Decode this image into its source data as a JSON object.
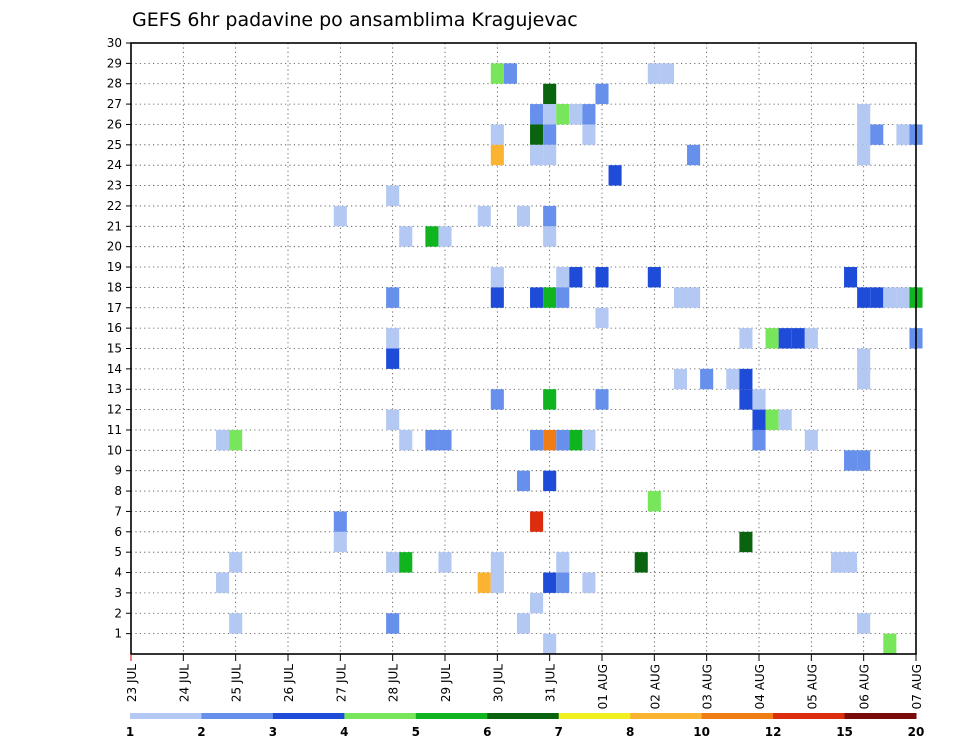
{
  "chart_data": {
    "type": "heatmap",
    "title": "GEFS 6hr padavine po ansamblima Kragujevac",
    "xlabel": "",
    "ylabel": "",
    "x_start": "2017-07-23 00Z",
    "x_end": "2017-08-07 00Z",
    "x_step_hours": 6,
    "x_tick_labels": [
      "23 JUL",
      "24 JUL",
      "25 JUL",
      "26 JUL",
      "27 JUL",
      "28 JUL",
      "29 JUL",
      "30 JUL",
      "31 JUL",
      "01 AUG",
      "02 AUG",
      "03 AUG",
      "04 AUG",
      "05 AUG",
      "06 AUG",
      "07 AUG"
    ],
    "y_tick_labels": [
      "1",
      "2",
      "3",
      "4",
      "5",
      "6",
      "7",
      "8",
      "9",
      "10",
      "11",
      "12",
      "13",
      "14",
      "15",
      "16",
      "17",
      "18",
      "19",
      "20",
      "21",
      "22",
      "23",
      "24",
      "25",
      "26",
      "27",
      "28",
      "29",
      "30"
    ],
    "ylim": [
      0,
      30
    ],
    "grid": true,
    "colorbar": {
      "labels": [
        "1",
        "2",
        "3",
        "4",
        "5",
        "6",
        "7",
        "8",
        "10",
        "12",
        "15",
        "20"
      ],
      "colors": [
        "#b4c8f4",
        "#6690ec",
        "#1e4cd8",
        "#78e65a",
        "#0fb41e",
        "#0a640f",
        "#f0f01e",
        "#fab432",
        "#f07d14",
        "#dc2d0f",
        "#780a0a"
      ],
      "unit": ""
    },
    "cells": [
      {
        "member": 29,
        "time": "30 JUL 00Z",
        "color": "#78e65a"
      },
      {
        "member": 29,
        "time": "30 JUL 06Z",
        "color": "#6690ec"
      },
      {
        "member": 29,
        "time": "02 AUG 00Z",
        "color": "#b4c8f4"
      },
      {
        "member": 29,
        "time": "02 AUG 06Z",
        "color": "#b4c8f4"
      },
      {
        "member": 28,
        "time": "31 JUL 00Z",
        "color": "#0a640f"
      },
      {
        "member": 28,
        "time": "01 AUG 00Z",
        "color": "#6690ec"
      },
      {
        "member": 27,
        "time": "30 JUL 18Z",
        "color": "#6690ec"
      },
      {
        "member": 27,
        "time": "31 JUL 00Z",
        "color": "#b4c8f4"
      },
      {
        "member": 27,
        "time": "31 JUL 06Z",
        "color": "#78e65a"
      },
      {
        "member": 27,
        "time": "31 JUL 12Z",
        "color": "#b4c8f4"
      },
      {
        "member": 27,
        "time": "31 JUL 18Z",
        "color": "#6690ec"
      },
      {
        "member": 27,
        "time": "06 AUG 00Z",
        "color": "#b4c8f4"
      },
      {
        "member": 26,
        "time": "30 JUL 00Z",
        "color": "#b4c8f4"
      },
      {
        "member": 26,
        "time": "30 JUL 18Z",
        "color": "#0a640f"
      },
      {
        "member": 26,
        "time": "31 JUL 00Z",
        "color": "#6690ec"
      },
      {
        "member": 26,
        "time": "31 JUL 18Z",
        "color": "#b4c8f4"
      },
      {
        "member": 26,
        "time": "06 AUG 00Z",
        "color": "#b4c8f4"
      },
      {
        "member": 26,
        "time": "06 AUG 06Z",
        "color": "#6690ec"
      },
      {
        "member": 26,
        "time": "06 AUG 18Z",
        "color": "#b4c8f4"
      },
      {
        "member": 26,
        "time": "07 AUG 00Z",
        "color": "#6690ec"
      },
      {
        "member": 25,
        "time": "30 JUL 00Z",
        "color": "#fab432"
      },
      {
        "member": 25,
        "time": "30 JUL 18Z",
        "color": "#b4c8f4"
      },
      {
        "member": 25,
        "time": "31 JUL 00Z",
        "color": "#b4c8f4"
      },
      {
        "member": 25,
        "time": "02 AUG 18Z",
        "color": "#6690ec"
      },
      {
        "member": 25,
        "time": "06 AUG 00Z",
        "color": "#b4c8f4"
      },
      {
        "member": 24,
        "time": "01 AUG 06Z",
        "color": "#1e4cd8"
      },
      {
        "member": 23,
        "time": "28 JUL 00Z",
        "color": "#b4c8f4"
      },
      {
        "member": 22,
        "time": "27 JUL 00Z",
        "color": "#b4c8f4"
      },
      {
        "member": 22,
        "time": "29 JUL 18Z",
        "color": "#b4c8f4"
      },
      {
        "member": 22,
        "time": "30 JUL 12Z",
        "color": "#b4c8f4"
      },
      {
        "member": 22,
        "time": "31 JUL 00Z",
        "color": "#6690ec"
      },
      {
        "member": 21,
        "time": "28 JUL 06Z",
        "color": "#b4c8f4"
      },
      {
        "member": 21,
        "time": "28 JUL 18Z",
        "color": "#0fb41e"
      },
      {
        "member": 21,
        "time": "29 JUL 00Z",
        "color": "#b4c8f4"
      },
      {
        "member": 21,
        "time": "31 JUL 00Z",
        "color": "#b4c8f4"
      },
      {
        "member": 19,
        "time": "30 JUL 00Z",
        "color": "#b4c8f4"
      },
      {
        "member": 19,
        "time": "31 JUL 06Z",
        "color": "#b4c8f4"
      },
      {
        "member": 19,
        "time": "31 JUL 12Z",
        "color": "#1e4cd8"
      },
      {
        "member": 19,
        "time": "01 AUG 00Z",
        "color": "#1e4cd8"
      },
      {
        "member": 19,
        "time": "02 AUG 00Z",
        "color": "#1e4cd8"
      },
      {
        "member": 19,
        "time": "05 AUG 18Z",
        "color": "#1e4cd8"
      },
      {
        "member": 18,
        "time": "28 JUL 00Z",
        "color": "#6690ec"
      },
      {
        "member": 18,
        "time": "30 JUL 00Z",
        "color": "#1e4cd8"
      },
      {
        "member": 18,
        "time": "30 JUL 18Z",
        "color": "#1e4cd8"
      },
      {
        "member": 18,
        "time": "31 JUL 00Z",
        "color": "#0fb41e"
      },
      {
        "member": 18,
        "time": "31 JUL 06Z",
        "color": "#6690ec"
      },
      {
        "member": 18,
        "time": "02 AUG 12Z",
        "color": "#b4c8f4"
      },
      {
        "member": 18,
        "time": "02 AUG 18Z",
        "color": "#b4c8f4"
      },
      {
        "member": 18,
        "time": "06 AUG 00Z",
        "color": "#1e4cd8"
      },
      {
        "member": 18,
        "time": "06 AUG 06Z",
        "color": "#1e4cd8"
      },
      {
        "member": 18,
        "time": "06 AUG 12Z",
        "color": "#b4c8f4"
      },
      {
        "member": 18,
        "time": "06 AUG 18Z",
        "color": "#b4c8f4"
      },
      {
        "member": 18,
        "time": "07 AUG 00Z",
        "color": "#0fb41e"
      },
      {
        "member": 17,
        "time": "01 AUG 00Z",
        "color": "#b4c8f4"
      },
      {
        "member": 16,
        "time": "28 JUL 00Z",
        "color": "#b4c8f4"
      },
      {
        "member": 16,
        "time": "03 AUG 18Z",
        "color": "#b4c8f4"
      },
      {
        "member": 16,
        "time": "04 AUG 06Z",
        "color": "#78e65a"
      },
      {
        "member": 16,
        "time": "04 AUG 12Z",
        "color": "#1e4cd8"
      },
      {
        "member": 16,
        "time": "04 AUG 18Z",
        "color": "#1e4cd8"
      },
      {
        "member": 16,
        "time": "05 AUG 00Z",
        "color": "#b4c8f4"
      },
      {
        "member": 16,
        "time": "07 AUG 00Z",
        "color": "#6690ec"
      },
      {
        "member": 15,
        "time": "28 JUL 00Z",
        "color": "#1e4cd8"
      },
      {
        "member": 15,
        "time": "06 AUG 00Z",
        "color": "#b4c8f4"
      },
      {
        "member": 14,
        "time": "02 AUG 12Z",
        "color": "#b4c8f4"
      },
      {
        "member": 14,
        "time": "03 AUG 00Z",
        "color": "#6690ec"
      },
      {
        "member": 14,
        "time": "03 AUG 12Z",
        "color": "#b4c8f4"
      },
      {
        "member": 14,
        "time": "03 AUG 18Z",
        "color": "#1e4cd8"
      },
      {
        "member": 14,
        "time": "06 AUG 00Z",
        "color": "#b4c8f4"
      },
      {
        "member": 13,
        "time": "30 JUL 00Z",
        "color": "#6690ec"
      },
      {
        "member": 13,
        "time": "31 JUL 00Z",
        "color": "#0fb41e"
      },
      {
        "member": 13,
        "time": "01 AUG 00Z",
        "color": "#6690ec"
      },
      {
        "member": 13,
        "time": "03 AUG 18Z",
        "color": "#1e4cd8"
      },
      {
        "member": 13,
        "time": "04 AUG 00Z",
        "color": "#b4c8f4"
      },
      {
        "member": 12,
        "time": "28 JUL 00Z",
        "color": "#b4c8f4"
      },
      {
        "member": 12,
        "time": "04 AUG 00Z",
        "color": "#1e4cd8"
      },
      {
        "member": 12,
        "time": "04 AUG 06Z",
        "color": "#78e65a"
      },
      {
        "member": 12,
        "time": "04 AUG 12Z",
        "color": "#b4c8f4"
      },
      {
        "member": 11,
        "time": "24 JUL 18Z",
        "color": "#b4c8f4"
      },
      {
        "member": 11,
        "time": "25 JUL 00Z",
        "color": "#78e65a"
      },
      {
        "member": 11,
        "time": "28 JUL 06Z",
        "color": "#b4c8f4"
      },
      {
        "member": 11,
        "time": "28 JUL 18Z",
        "color": "#6690ec"
      },
      {
        "member": 11,
        "time": "29 JUL 00Z",
        "color": "#6690ec"
      },
      {
        "member": 11,
        "time": "30 JUL 18Z",
        "color": "#6690ec"
      },
      {
        "member": 11,
        "time": "31 JUL 00Z",
        "color": "#f07d14"
      },
      {
        "member": 11,
        "time": "31 JUL 06Z",
        "color": "#6690ec"
      },
      {
        "member": 11,
        "time": "31 JUL 12Z",
        "color": "#0fb41e"
      },
      {
        "member": 11,
        "time": "31 JUL 18Z",
        "color": "#b4c8f4"
      },
      {
        "member": 11,
        "time": "04 AUG 00Z",
        "color": "#6690ec"
      },
      {
        "member": 11,
        "time": "05 AUG 00Z",
        "color": "#b4c8f4"
      },
      {
        "member": 10,
        "time": "05 AUG 18Z",
        "color": "#6690ec"
      },
      {
        "member": 10,
        "time": "06 AUG 00Z",
        "color": "#6690ec"
      },
      {
        "member": 9,
        "time": "30 JUL 12Z",
        "color": "#6690ec"
      },
      {
        "member": 9,
        "time": "31 JUL 00Z",
        "color": "#1e4cd8"
      },
      {
        "member": 8,
        "time": "02 AUG 00Z",
        "color": "#78e65a"
      },
      {
        "member": 7,
        "time": "27 JUL 00Z",
        "color": "#6690ec"
      },
      {
        "member": 7,
        "time": "30 JUL 18Z",
        "color": "#dc2d0f"
      },
      {
        "member": 6,
        "time": "27 JUL 00Z",
        "color": "#b4c8f4"
      },
      {
        "member": 6,
        "time": "03 AUG 18Z",
        "color": "#0a640f"
      },
      {
        "member": 5,
        "time": "25 JUL 00Z",
        "color": "#b4c8f4"
      },
      {
        "member": 5,
        "time": "28 JUL 00Z",
        "color": "#b4c8f4"
      },
      {
        "member": 5,
        "time": "28 JUL 06Z",
        "color": "#0fb41e"
      },
      {
        "member": 5,
        "time": "29 JUL 00Z",
        "color": "#b4c8f4"
      },
      {
        "member": 5,
        "time": "30 JUL 00Z",
        "color": "#b4c8f4"
      },
      {
        "member": 5,
        "time": "31 JUL 06Z",
        "color": "#b4c8f4"
      },
      {
        "member": 5,
        "time": "01 AUG 18Z",
        "color": "#0a640f"
      },
      {
        "member": 5,
        "time": "05 AUG 12Z",
        "color": "#b4c8f4"
      },
      {
        "member": 5,
        "time": "05 AUG 18Z",
        "color": "#b4c8f4"
      },
      {
        "member": 4,
        "time": "24 JUL 18Z",
        "color": "#b4c8f4"
      },
      {
        "member": 4,
        "time": "29 JUL 18Z",
        "color": "#fab432"
      },
      {
        "member": 4,
        "time": "30 JUL 00Z",
        "color": "#b4c8f4"
      },
      {
        "member": 4,
        "time": "31 JUL 00Z",
        "color": "#1e4cd8"
      },
      {
        "member": 4,
        "time": "31 JUL 06Z",
        "color": "#6690ec"
      },
      {
        "member": 4,
        "time": "31 JUL 18Z",
        "color": "#b4c8f4"
      },
      {
        "member": 3,
        "time": "30 JUL 18Z",
        "color": "#b4c8f4"
      },
      {
        "member": 2,
        "time": "25 JUL 00Z",
        "color": "#b4c8f4"
      },
      {
        "member": 2,
        "time": "28 JUL 00Z",
        "color": "#6690ec"
      },
      {
        "member": 2,
        "time": "30 JUL 12Z",
        "color": "#b4c8f4"
      },
      {
        "member": 2,
        "time": "06 AUG 00Z",
        "color": "#b4c8f4"
      },
      {
        "member": 1,
        "time": "06 AUG 12Z",
        "color": "#78e65a"
      },
      {
        "member": 1,
        "time": "31 JUL 00Z",
        "color": "#b4c8f4"
      }
    ]
  }
}
